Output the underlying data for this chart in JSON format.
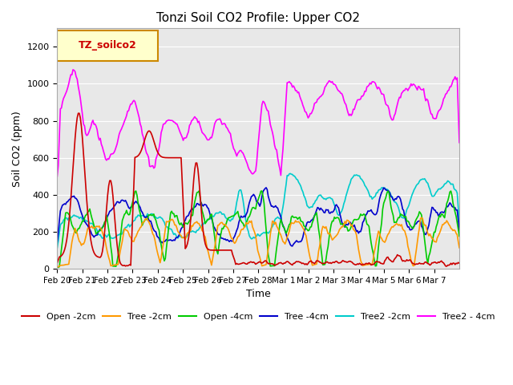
{
  "title": "Tonzi Soil CO2 Profile: Upper CO2",
  "xlabel": "Time",
  "ylabel": "Soil CO2 (ppm)",
  "legend_label": "TZ_soilco2",
  "ylim": [
    0,
    1300
  ],
  "yticks": [
    0,
    200,
    400,
    600,
    800,
    1000,
    1200
  ],
  "background_color": "#e8e8e8",
  "series_colors": {
    "Open -2cm": "#cc0000",
    "Tree -2cm": "#ff9900",
    "Open -4cm": "#00cc00",
    "Tree -4cm": "#0000cc",
    "Tree2 -2cm": "#00cccc",
    "Tree2 - 4cm": "#ff00ff"
  },
  "xtick_labels": [
    "Feb 20",
    "Feb 21",
    "Feb 22",
    "Feb 23",
    "Feb 24",
    "Feb 25",
    "Feb 26",
    "Feb 27",
    "Feb 28",
    "Mar 1",
    "Mar 2",
    "Mar 3",
    "Mar 4",
    "Mar 5",
    "Mar 6",
    "Mar 7"
  ]
}
